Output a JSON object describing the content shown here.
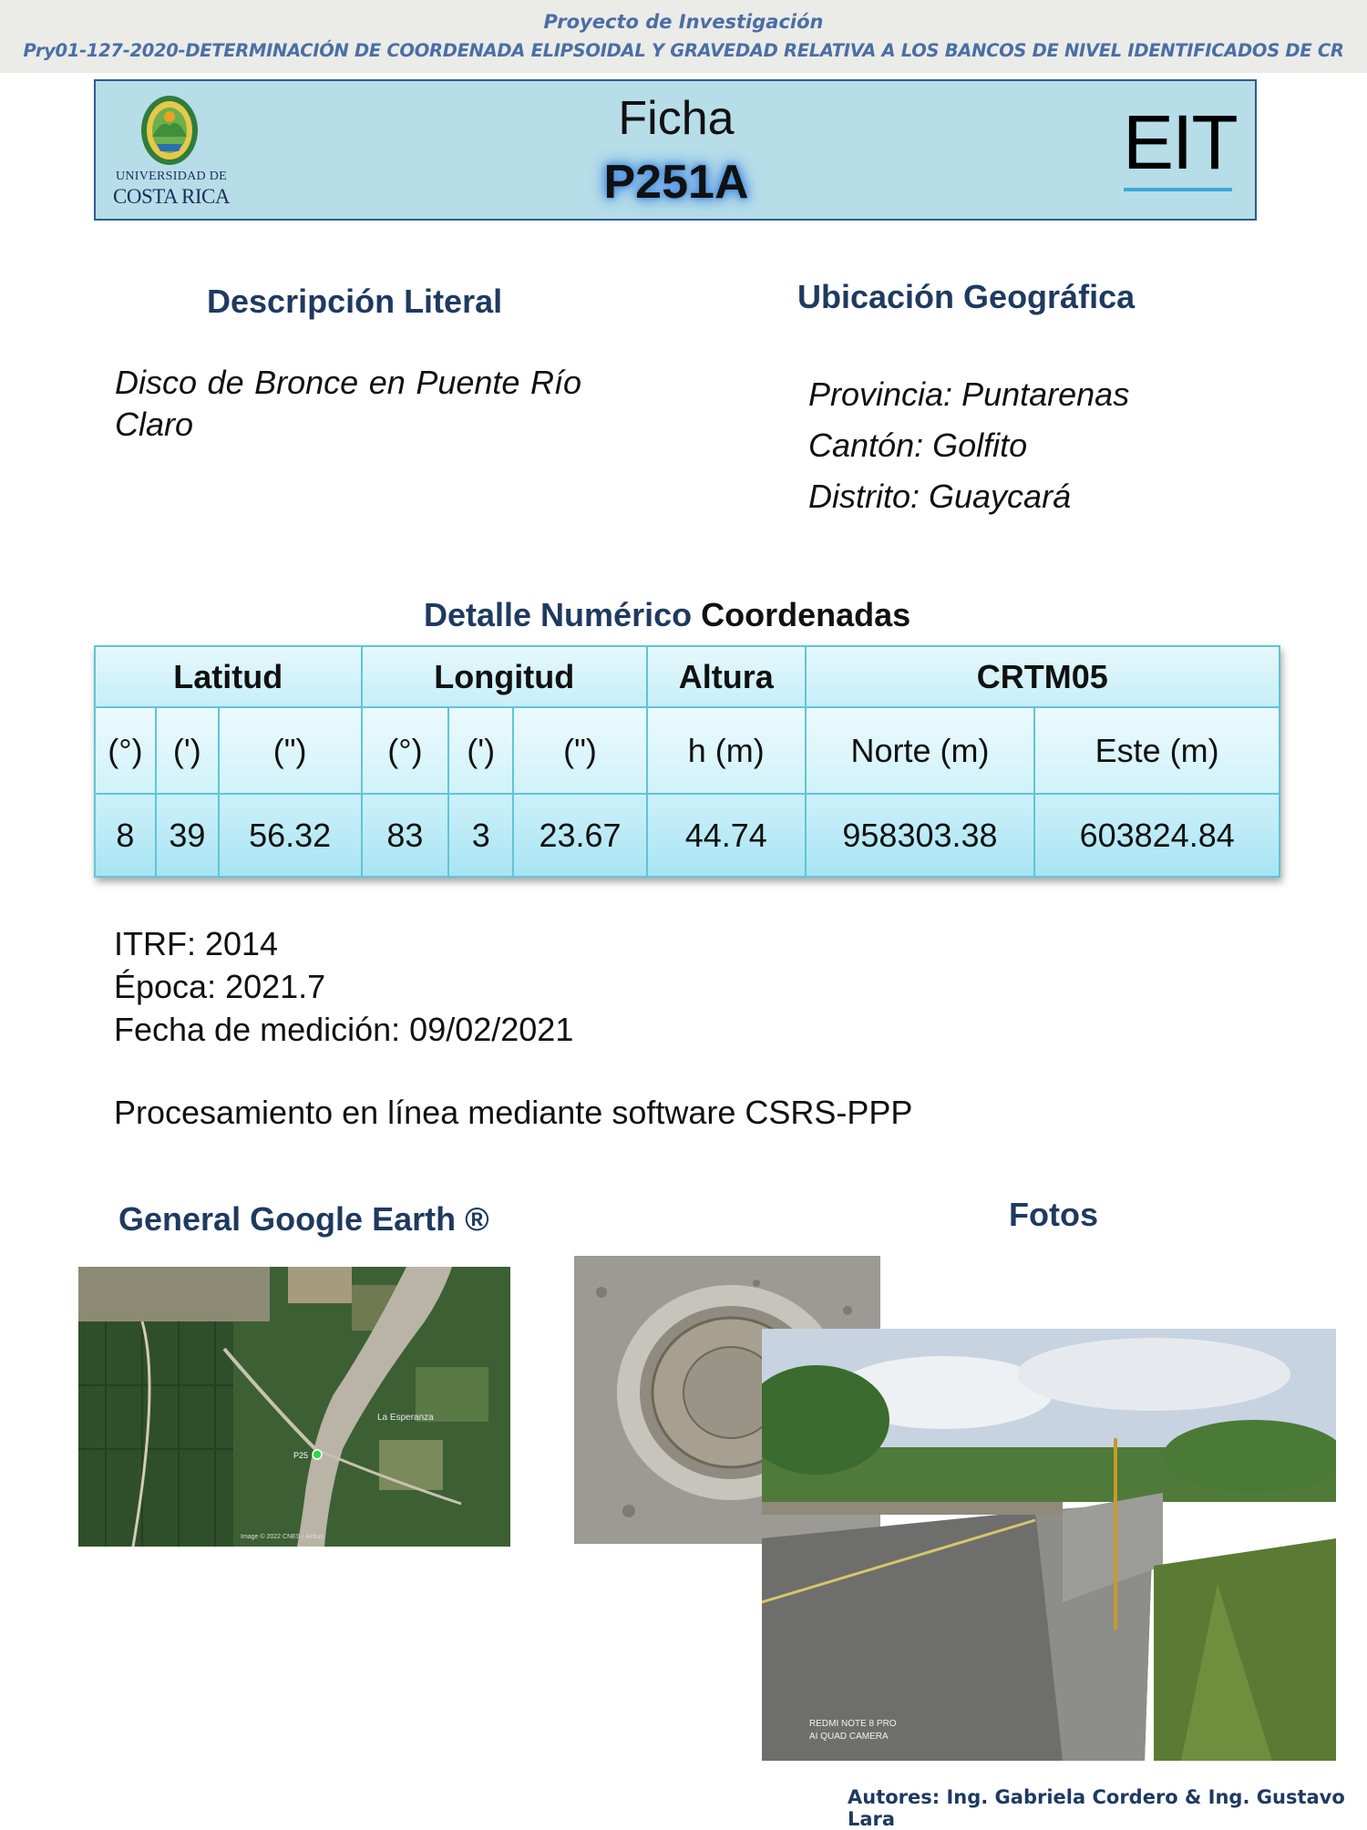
{
  "header": {
    "project_title": "Proyecto de Investigación",
    "project_subtitle": "Pry01-127-2020-DETERMINACIÓN DE COORDENADA ELIPSOIDAL Y GRAVEDAD RELATIVA A LOS BANCOS DE NIVEL IDENTIFICADOS DE CR",
    "logo_line1": "UNIVERSIDAD DE",
    "logo_line2": "COSTA RICA",
    "ficha_label": "Ficha",
    "code": "P251A",
    "eit": "EIT"
  },
  "descripcion": {
    "heading": "Descripción Literal",
    "text": "Disco de Bronce en Puente Río Claro"
  },
  "ubicacion": {
    "heading": "Ubicación Geográfica",
    "provincia": "Provincia: Puntarenas",
    "canton": "Cantón: Golfito",
    "distrito": "Distrito: Guaycará"
  },
  "detalle": {
    "heading_part1": "Detalle Numérico",
    "heading_part2": "Coordenadas"
  },
  "table": {
    "groups": [
      "Latitud",
      "Longitud",
      "Altura",
      "CRTM05"
    ],
    "units": [
      "(°)",
      "(')",
      "(\")",
      "(°)",
      "(')",
      "(\")",
      "h (m)",
      "Norte (m)",
      "Este (m)"
    ],
    "values": [
      "8",
      "39",
      "56.32",
      "83",
      "3",
      "23.67",
      "44.74",
      "958303.38",
      "603824.84"
    ]
  },
  "meta": {
    "itrf": "ITRF: 2014",
    "epoca": "Época: 2021.7",
    "fecha": "Fecha de medición: 09/02/2021",
    "procesamiento": "Procesamiento en línea mediante software CSRS-PPP"
  },
  "images": {
    "map_heading": "General Google Earth ®",
    "photos_heading": "Fotos",
    "map_label_town": "La Esperanza",
    "map_marker": "P25",
    "map_credit": "Image © 2022 CNES / Airbus",
    "photo_stamp_line1": "REDMI NOTE 8 PRO",
    "photo_stamp_line2": "AI QUAD CAMERA"
  },
  "footer": {
    "authors": "Autores: Ing. Gabriela Cordero & Ing. Gustavo Lara"
  }
}
